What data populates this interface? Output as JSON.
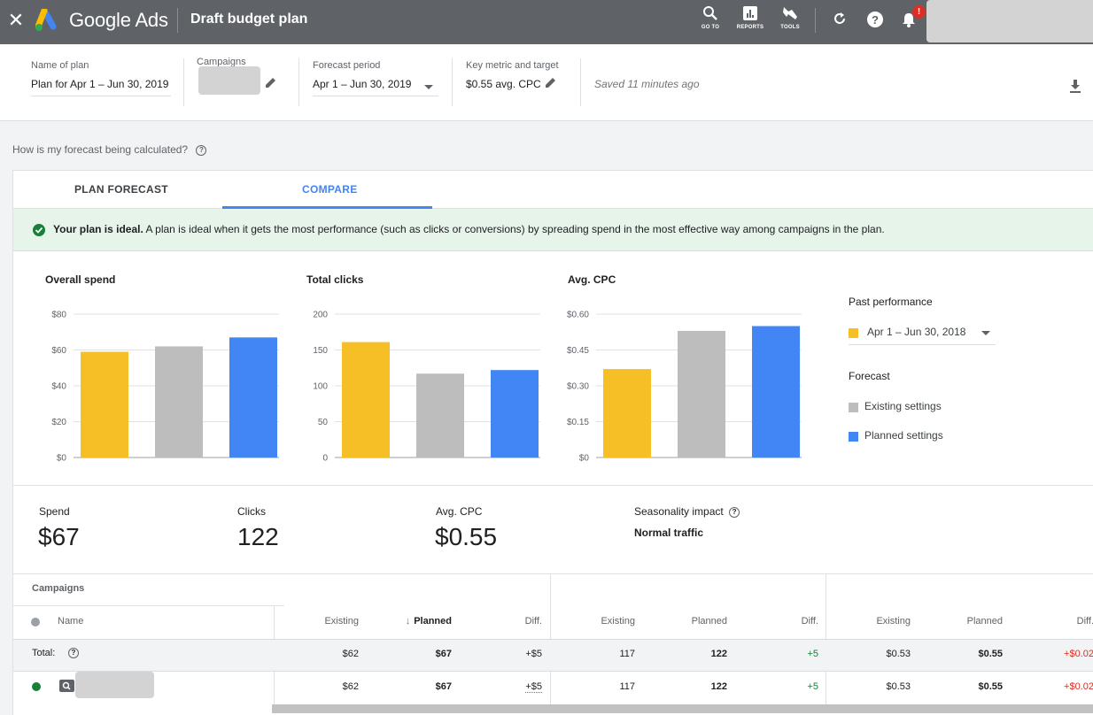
{
  "topbar": {
    "close_icon": "close-icon",
    "brand": "Google Ads",
    "title": "Draft budget plan",
    "tools": [
      {
        "label": "GO TO",
        "icon": "search-icon"
      },
      {
        "label": "REPORTS",
        "icon": "reports-icon"
      },
      {
        "label": "TOOLS",
        "icon": "wrench-icon"
      }
    ],
    "badge": "!"
  },
  "plan": {
    "name_label": "Name of plan",
    "name_value": "Plan for Apr 1 – Jun 30, 2019",
    "campaigns_label": "Campaigns",
    "forecast_label": "Forecast period",
    "forecast_value": "Apr 1 – Jun 30, 2019",
    "metric_label": "Key metric and target",
    "metric_value": "$0.55 avg. CPC",
    "saved": "Saved 11 minutes ago"
  },
  "calc_question": "How is my forecast being calculated?",
  "tabs": [
    {
      "label": "PLAN FORECAST",
      "active": false
    },
    {
      "label": "COMPARE",
      "active": true
    }
  ],
  "ideal": {
    "bold": "Your plan is ideal.",
    "text": " A plan is ideal when it gets the most performance (such as clicks or conversions) by spreading spend in the most effective way among campaigns in the plan."
  },
  "colors": {
    "past": "#f6bf26",
    "existing": "#bdbdbd",
    "planned": "#4285f4",
    "accent": "#4285f4",
    "positive": "#188038",
    "negative": "#d93025"
  },
  "chart_data": [
    {
      "type": "bar",
      "title": "Overall spend",
      "categories": [
        "Past performance",
        "Existing settings",
        "Planned settings"
      ],
      "values": [
        59,
        62,
        67
      ],
      "ylim": [
        0,
        80
      ],
      "ticks": [
        "$0",
        "$20",
        "$40",
        "$60",
        "$80"
      ],
      "tick_values": [
        0,
        20,
        40,
        60,
        80
      ]
    },
    {
      "type": "bar",
      "title": "Total clicks",
      "categories": [
        "Past performance",
        "Existing settings",
        "Planned settings"
      ],
      "values": [
        161,
        117,
        122
      ],
      "ylim": [
        0,
        200
      ],
      "ticks": [
        "0",
        "50",
        "100",
        "150",
        "200"
      ],
      "tick_values": [
        0,
        50,
        100,
        150,
        200
      ]
    },
    {
      "type": "bar",
      "title": "Avg. CPC",
      "categories": [
        "Past performance",
        "Existing settings",
        "Planned settings"
      ],
      "values": [
        0.37,
        0.53,
        0.55
      ],
      "ylim": [
        0,
        0.6
      ],
      "ticks": [
        "$0",
        "$0.15",
        "$0.30",
        "$0.45",
        "$0.60"
      ],
      "tick_values": [
        0,
        0.15,
        0.3,
        0.45,
        0.6
      ]
    }
  ],
  "legend": {
    "past_title": "Past performance",
    "past_period": "Apr 1 – Jun 30, 2018",
    "forecast_title": "Forecast",
    "existing": "Existing settings",
    "planned": "Planned settings"
  },
  "summary": {
    "spend_label": "Spend",
    "spend_value": "$67",
    "clicks_label": "Clicks",
    "clicks_value": "122",
    "cpc_label": "Avg. CPC",
    "cpc_value": "$0.55",
    "season_label": "Seasonality impact",
    "season_value": "Normal traffic"
  },
  "table": {
    "title": "Campaigns",
    "name_header": "Name",
    "headers": [
      "Existing",
      "Planned",
      "Diff.",
      "Existing",
      "Planned",
      "Diff.",
      "Existing",
      "Planned",
      "Diff."
    ],
    "total_label": "Total:",
    "total": [
      "$62",
      "$67",
      "+$5",
      "117",
      "122",
      "+5",
      "$0.53",
      "$0.55",
      "+$0.02"
    ],
    "row": [
      "$62",
      "$67",
      "+$5",
      "117",
      "122",
      "+5",
      "$0.53",
      "$0.55",
      "+$0.02"
    ]
  }
}
